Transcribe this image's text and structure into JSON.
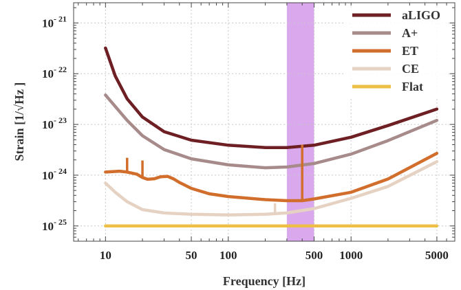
{
  "chart_data": {
    "type": "line",
    "x_scale": "log",
    "y_scale": "log",
    "xlabel": "Frequency [Hz]",
    "ylabel": "Strain [1/√Hz ]",
    "xlim": [
      5.5,
      7000
    ],
    "ylim": [
      5e-26,
      2.5e-21
    ],
    "x_ticks": [
      {
        "value": 10,
        "label": "10"
      },
      {
        "value": 50,
        "label": "50"
      },
      {
        "value": 100,
        "label": "100"
      },
      {
        "value": 500,
        "label": "500"
      },
      {
        "value": 1000,
        "label": "1000"
      },
      {
        "value": 5000,
        "label": "5000"
      }
    ],
    "y_ticks": [
      {
        "value": 1e-21,
        "base": "10",
        "exp": "- 21"
      },
      {
        "value": 1e-22,
        "base": "10",
        "exp": "- 22"
      },
      {
        "value": 1e-23,
        "base": "10",
        "exp": "- 23"
      },
      {
        "value": 1e-24,
        "base": "10",
        "exp": "- 24"
      },
      {
        "value": 1e-25,
        "base": "10",
        "exp": "- 25"
      }
    ],
    "grid": true,
    "legend_position": "top-right",
    "shaded_band": {
      "x_range": [
        300,
        500
      ],
      "color": "#d8a4ec"
    },
    "series": [
      {
        "name": "aLIGO",
        "color": "#6e1f24",
        "x": [
          10,
          12,
          15,
          20,
          30,
          50,
          100,
          200,
          300,
          500,
          1000,
          2000,
          5000
        ],
        "y": [
          3.2e-22,
          9e-23,
          3.2e-23,
          1.4e-23,
          7.2e-24,
          4.9e-24,
          3.9e-24,
          3.5e-24,
          3.5e-24,
          3.9e-24,
          5.6e-24,
          9.5e-24,
          2e-23
        ]
      },
      {
        "name": "A+",
        "color": "#a78a8a",
        "x": [
          10,
          15,
          20,
          30,
          50,
          100,
          200,
          300,
          500,
          1000,
          2000,
          5000
        ],
        "y": [
          3.8e-23,
          1.2e-23,
          6e-24,
          3.2e-24,
          2.1e-24,
          1.6e-24,
          1.4e-24,
          1.45e-24,
          1.7e-24,
          2.6e-24,
          4.8e-24,
          1.2e-23
        ]
      },
      {
        "name": "ET",
        "color": "#d26e2c",
        "x": [
          10,
          13,
          15,
          18,
          20,
          22,
          25,
          28,
          32,
          36,
          40,
          50,
          70,
          100,
          200,
          300,
          400,
          500,
          1000,
          2000,
          5000
        ],
        "y": [
          1.15e-24,
          1.2e-24,
          1.15e-24,
          1.05e-24,
          9e-25,
          8.3e-25,
          8.5e-25,
          9.3e-25,
          9.5e-25,
          8.4e-25,
          7.2e-25,
          5.5e-25,
          4.3e-25,
          3.8e-25,
          3.3e-25,
          3.15e-25,
          3.15e-25,
          3.4e-25,
          4.6e-25,
          8.4e-25,
          2.7e-24
        ]
      },
      {
        "name": "CE",
        "color": "#e6d2c2",
        "x": [
          10,
          12,
          15,
          20,
          30,
          50,
          100,
          200,
          300,
          500,
          1000,
          2000,
          5000
        ],
        "y": [
          7e-25,
          4.6e-25,
          3e-25,
          2.1e-25,
          1.8e-25,
          1.7e-25,
          1.65e-25,
          1.7e-25,
          1.8e-25,
          2.2e-25,
          3.5e-25,
          6e-25,
          1.85e-24
        ]
      },
      {
        "name": "Flat",
        "color": "#eebf46",
        "x": [
          10,
          5000
        ],
        "y": [
          1e-25,
          1e-25
        ]
      }
    ],
    "spikes": [
      {
        "series": "ET",
        "x": 15,
        "y_base": 1.15e-24,
        "y_top": 2.2e-24
      },
      {
        "series": "ET",
        "x": 20,
        "y_base": 9e-25,
        "y_top": 1.95e-24
      },
      {
        "series": "ET",
        "x": 400,
        "y_base": 3.15e-25,
        "y_top": 4e-24
      },
      {
        "series": "CE",
        "x": 240,
        "y_base": 1.72e-25,
        "y_top": 2.8e-25
      }
    ]
  }
}
